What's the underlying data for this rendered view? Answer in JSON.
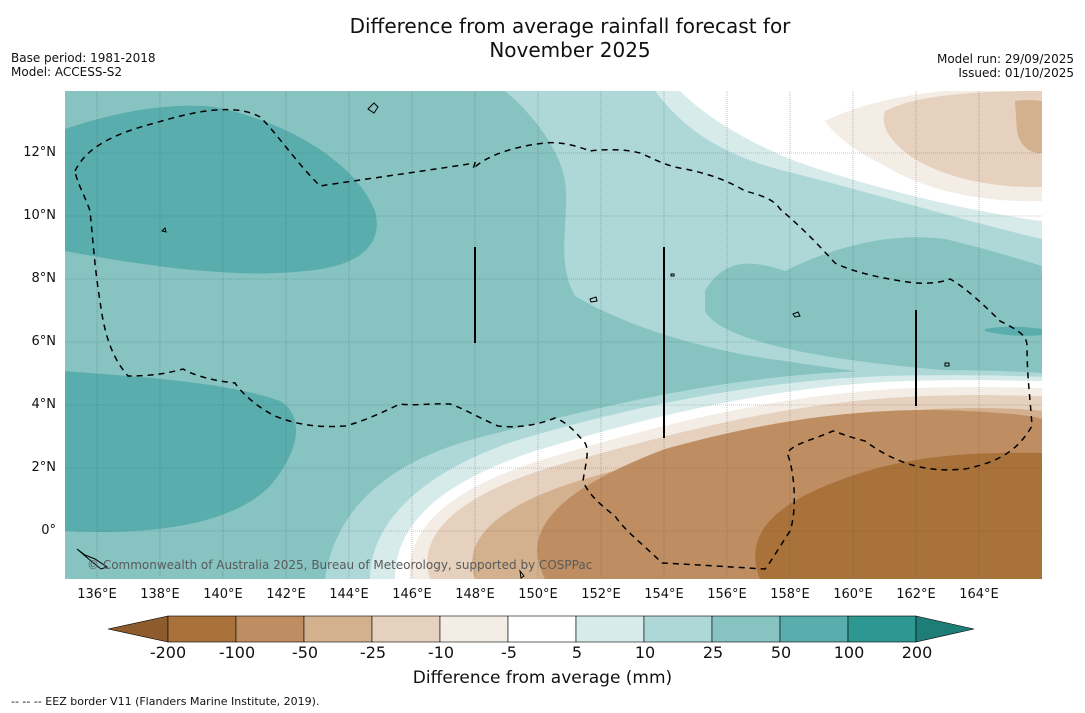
{
  "title": "Difference from average rainfall forecast for\nNovember 2025",
  "title_line1": "Difference from average rainfall forecast for",
  "title_line2": "November 2025",
  "base_period": "Base period: 1981-2018",
  "model": "Model: ACCESS-S2",
  "model_run": "Model run: 29/09/2025",
  "issued": "Issued: 01/10/2025",
  "map": {
    "credit": "© Commonwealth of Australia 2025, Bureau of Meteorology, supported by COSPPac",
    "lat_labels": [
      "12°N",
      "10°N",
      "8°N",
      "6°N",
      "4°N",
      "2°N",
      "0°"
    ],
    "lon_labels": [
      "136°E",
      "138°E",
      "140°E",
      "142°E",
      "144°E",
      "146°E",
      "148°E",
      "150°E",
      "152°E",
      "154°E",
      "156°E",
      "158°E",
      "160°E",
      "162°E",
      "164°E"
    ]
  },
  "colorbar": {
    "ticks": [
      "-200",
      "-100",
      "-50",
      "-25",
      "-10",
      "-5",
      "5",
      "10",
      "25",
      "50",
      "100",
      "200"
    ],
    "colors": [
      "#a8723a",
      "#be8e62",
      "#d3b08e",
      "#e5d1bd",
      "#f3ede6",
      "#ffffff",
      "#d6ebea",
      "#add8d7",
      "#86c3c1",
      "#5aadad",
      "#2e9792"
    ],
    "extend_low_color": "#8e5c2c",
    "extend_high_color": "#1f7d78",
    "label": "Difference from average (mm)"
  },
  "footnote": "--  --  -- EEZ border V11 (Flanders Marine Institute, 2019)."
}
